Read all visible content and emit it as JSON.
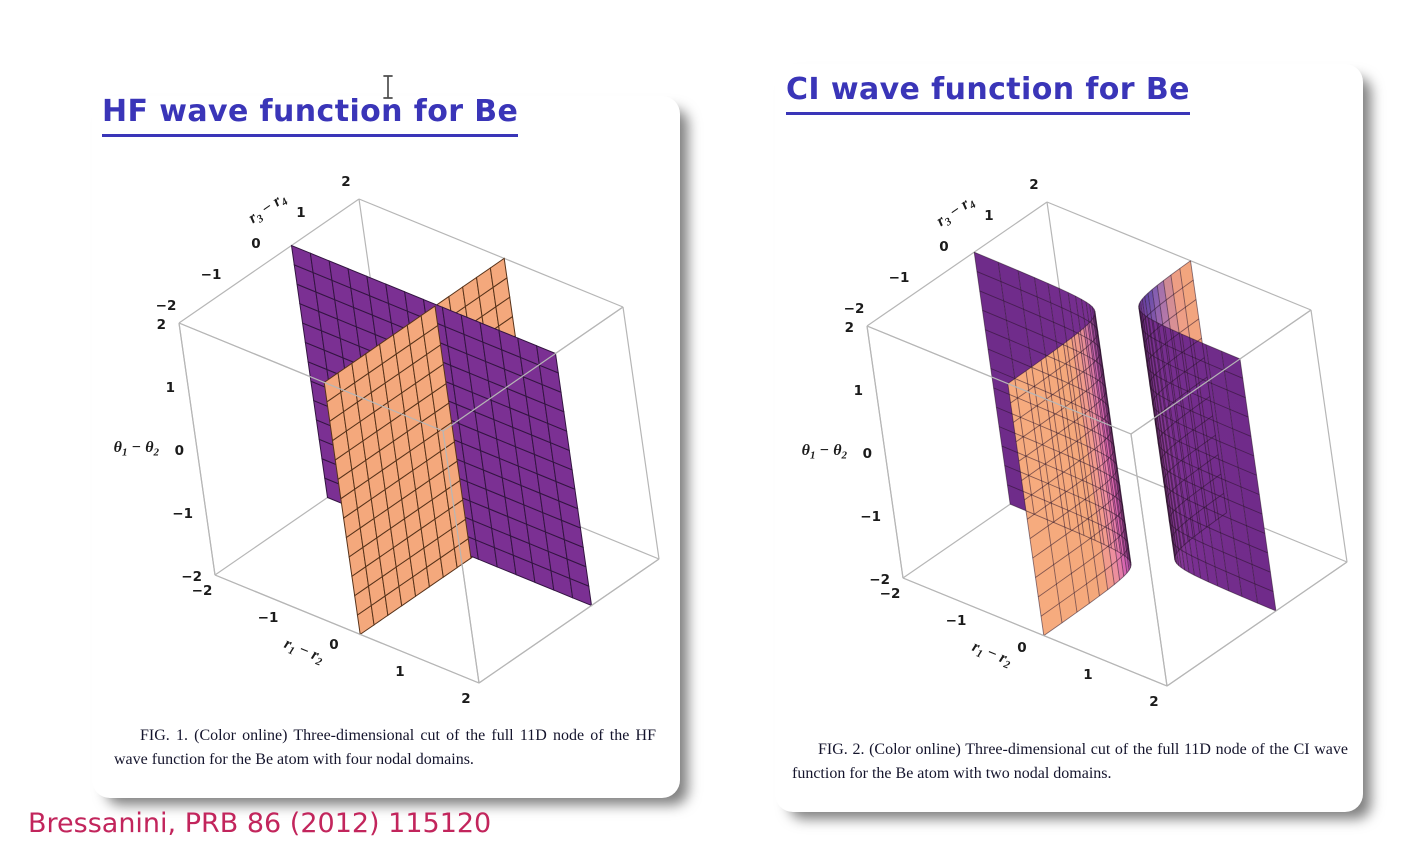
{
  "colors": {
    "title_blue": "#3a35b8",
    "citation_red": "#c2255c",
    "caption_text": "#14142c",
    "purple_surface": "#7b3093",
    "orange_surface": "#f4a87c",
    "pink_transition": "#e366b2",
    "blue_tint": "#5f49a5",
    "mesh_dark": "#2e1630",
    "frame_gray": "#b6b6b6",
    "tick_text": "#1b1b1b"
  },
  "citation": {
    "text": "Bressanini, PRB 86 (2012) 115120"
  },
  "panels": [
    {
      "title": "HF wave function for Be",
      "caption": "FIG. 1. (Color online) Three-dimensional cut of the full 11D node of the HF wave function for the Be atom with four nodal domains.",
      "fig_label": "FIG. 1."
    },
    {
      "title": "CI wave function for Be",
      "caption": "FIG. 2. (Color online) Three-dimensional cut of the full 11D node of the CI wave function for the Be atom with two nodal domains.",
      "fig_label": "FIG. 2."
    }
  ],
  "cursor": {
    "type": "text-ibeam"
  },
  "chart_data": [
    {
      "type": "surface3d",
      "title": "HF wave function for Be",
      "caption": "FIG. 1. (Color online) Three-dimensional cut of the full 11D node of the HF wave function for the Be atom with four nodal domains.",
      "nodal_domains": 4,
      "axes": {
        "x": {
          "label": "r1 − r2",
          "parts": [
            {
              "t": "r",
              "s": "1"
            },
            {
              "t": " − "
            },
            {
              "t": "r",
              "s": "2"
            }
          ],
          "range": [
            -2,
            2
          ],
          "ticks": [
            {
              "v": -2,
              "label": "−2"
            },
            {
              "v": -1,
              "label": "−1"
            },
            {
              "v": 0,
              "label": "0"
            },
            {
              "v": 1,
              "label": "1"
            },
            {
              "v": 2,
              "label": "2"
            }
          ]
        },
        "y": {
          "label": "r3 − r4",
          "parts": [
            {
              "t": "r",
              "s": "3"
            },
            {
              "t": " − "
            },
            {
              "t": "r",
              "s": "4"
            }
          ],
          "range": [
            -2,
            2
          ],
          "ticks": [
            {
              "v": -2,
              "label": "−2"
            },
            {
              "v": -1,
              "label": "−1"
            },
            {
              "v": 0,
              "label": "0"
            },
            {
              "v": 1,
              "label": "1"
            },
            {
              "v": 2,
              "label": "2"
            }
          ]
        },
        "z": {
          "label": "θ1 − θ2",
          "parts": [
            {
              "t": "θ",
              "s": "1"
            },
            {
              "t": " − "
            },
            {
              "t": "θ",
              "s": "2"
            }
          ],
          "range": [
            -2,
            2
          ],
          "ticks": [
            {
              "v": -2,
              "label": "−2"
            },
            {
              "v": -1,
              "label": "−1"
            },
            {
              "v": 0,
              "label": "0"
            },
            {
              "v": 1,
              "label": "1"
            },
            {
              "v": 2,
              "label": "2"
            }
          ]
        }
      },
      "surfaces": [
        {
          "name": "orange-plane",
          "description": "flat vertical plane at r1−r2 ≈ 0.2 spanning r3−r4 and θ1−θ2 from −2 to 2",
          "color": "#f4a87c",
          "mesh": [
            13,
            13
          ]
        },
        {
          "name": "purple-plane",
          "description": "flat vertical plane at r3−r4 ≈ 0.5 spanning r1−r2 and θ1−θ2 from −2 to 2",
          "color": "#7b3093",
          "mesh": [
            14,
            13
          ]
        }
      ],
      "frame": "light gray wireframe cube, range −2..2 on all axes"
    },
    {
      "type": "surface3d",
      "title": "CI wave function for Be",
      "caption": "FIG. 2. (Color online) Three-dimensional cut of the full 11D node of the CI wave function for the Be atom with two nodal domains.",
      "nodal_domains": 2,
      "axes": {
        "x": {
          "label": "r1 − r2",
          "parts": [
            {
              "t": "r",
              "s": "1"
            },
            {
              "t": " − "
            },
            {
              "t": "r",
              "s": "2"
            }
          ],
          "range": [
            -2,
            2
          ],
          "ticks": [
            {
              "v": -2,
              "label": "−2"
            },
            {
              "v": -1,
              "label": "−1"
            },
            {
              "v": 0,
              "label": "0"
            },
            {
              "v": 1,
              "label": "1"
            },
            {
              "v": 2,
              "label": "2"
            }
          ]
        },
        "y": {
          "label": "r3 − r4",
          "parts": [
            {
              "t": "r",
              "s": "3"
            },
            {
              "t": " − "
            },
            {
              "t": "r",
              "s": "4"
            }
          ],
          "range": [
            -2,
            2
          ],
          "ticks": [
            {
              "v": -2,
              "label": "−2"
            },
            {
              "v": -1,
              "label": "−1"
            },
            {
              "v": 0,
              "label": "0"
            },
            {
              "v": 1,
              "label": "1"
            },
            {
              "v": 2,
              "label": "2"
            }
          ]
        },
        "z": {
          "label": "θ1 − θ2",
          "parts": [
            {
              "t": "θ",
              "s": "1"
            },
            {
              "t": " − "
            },
            {
              "t": "θ",
              "s": "2"
            }
          ],
          "range": [
            -2,
            2
          ],
          "ticks": [
            {
              "v": -2,
              "label": "−2"
            },
            {
              "v": -1,
              "label": "−1"
            },
            {
              "v": 0,
              "label": "0"
            },
            {
              "v": 1,
              "label": "1"
            },
            {
              "v": 2,
              "label": "2"
            }
          ]
        }
      },
      "surfaces": [
        {
          "name": "left-hyperbolic-sheet",
          "description": "curved vertical sheet, branch of (r1−r2)(r3−r4) ≈ const; purple toward left wall, bending to orange toward front, pink blend near the neck",
          "color": "#f4a87c"
        },
        {
          "name": "right-hyperbolic-sheet",
          "description": "curved vertical sheet, opposite branch; orange sliver toward back, bending to purple toward right wall, blue/pink blend near the neck",
          "color": "#7b3093"
        }
      ],
      "frame": "light gray wireframe cube, range −2..2 on all axes"
    }
  ]
}
